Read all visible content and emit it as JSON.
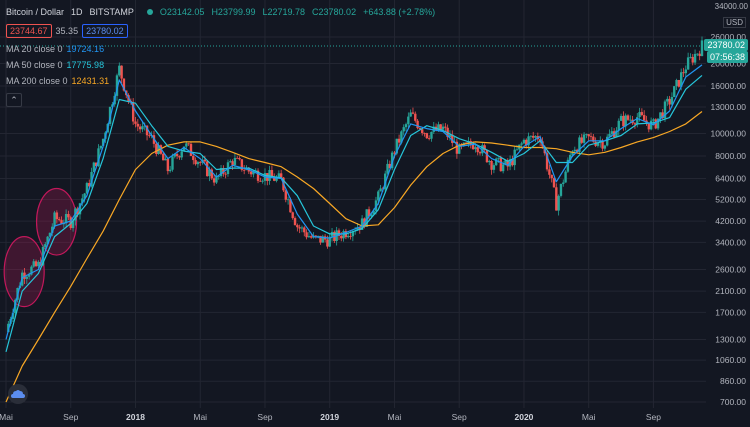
{
  "header": {
    "symbol": "Bitcoin / Dollar",
    "interval": "1D",
    "exchange": "BITSTAMP",
    "open": "O23142.05",
    "high": "H23799.99",
    "low": "L22719.78",
    "close": "C23780.02",
    "change": "+643.88 (+2.78%)",
    "bid": "23744.67",
    "spread": "35.35",
    "ask": "23780.02"
  },
  "indicators": [
    {
      "label": "MA 20 close 0",
      "value": "19724.16",
      "color": "#2196f3"
    },
    {
      "label": "MA 50 close 0",
      "value": "17775.98",
      "color": "#26c6da"
    },
    {
      "label": "MA 200 close 0",
      "value": "12431.31",
      "color": "#f9a825"
    }
  ],
  "collapse_icon": "chevron-up-icon",
  "logo_icon": "tradingview-logo-icon",
  "price_axis": {
    "currency": "USD",
    "scale": "log",
    "top_tick": "34000.00",
    "ticks": [
      "26000.00",
      "20000.00",
      "16000.00",
      "13000.00",
      "10000.00",
      "8000.00",
      "6400.00",
      "5200.00",
      "4200.00",
      "3400.00",
      "2600.00",
      "2100.00",
      "1700.00",
      "1300.00",
      "1060.00",
      "860.00",
      "700.00"
    ],
    "last_price": "23780.02",
    "countdown": "07:56:38"
  },
  "time_axis": {
    "labels": [
      "Mai",
      "Sep",
      "2018",
      "Mai",
      "Sep",
      "2019",
      "Mai",
      "Sep",
      "2020",
      "Mai",
      "Sep"
    ]
  },
  "colors": {
    "background": "#131722",
    "grid": "#232632",
    "up": "#26a69a",
    "down": "#ef5350",
    "ma20": "#2196f3",
    "ma50": "#26c6da",
    "ma200": "#f9a825",
    "highlight": "#c2185b"
  },
  "chart_data": {
    "type": "candlestick",
    "yscale": "log",
    "ylim": [
      650,
      34000
    ],
    "x": [
      "2017-05",
      "2017-06",
      "2017-07",
      "2017-08",
      "2017-09",
      "2017-10",
      "2017-11",
      "2017-12",
      "2018-01",
      "2018-02",
      "2018-03",
      "2018-04",
      "2018-05",
      "2018-06",
      "2018-07",
      "2018-08",
      "2018-09",
      "2018-10",
      "2018-11",
      "2018-12",
      "2019-01",
      "2019-02",
      "2019-03",
      "2019-04",
      "2019-05",
      "2019-06",
      "2019-07",
      "2019-08",
      "2019-09",
      "2019-10",
      "2019-11",
      "2019-12",
      "2020-01",
      "2020-02",
      "2020-03",
      "2020-04",
      "2020-05",
      "2020-06",
      "2020-07",
      "2020-08",
      "2020-09",
      "2020-10",
      "2020-11",
      "2020-12"
    ],
    "price": [
      1400,
      2500,
      2700,
      4300,
      4200,
      5800,
      9500,
      19000,
      11000,
      9500,
      7000,
      9000,
      7500,
      6300,
      7700,
      6900,
      6600,
      6300,
      4000,
      3500,
      3500,
      3800,
      4100,
      5300,
      8500,
      12000,
      10000,
      10500,
      8400,
      9200,
      7500,
      7200,
      9300,
      9800,
      5000,
      8700,
      9500,
      9200,
      11300,
      11800,
      10800,
      13800,
      19500,
      23780
    ],
    "ma20": [
      1300,
      2400,
      2600,
      4000,
      4200,
      5400,
      8800,
      17000,
      12500,
      9800,
      7800,
      8700,
      7800,
      6500,
      7300,
      7000,
      6500,
      6400,
      4500,
      3600,
      3550,
      3750,
      4000,
      5000,
      8000,
      11000,
      10500,
      10200,
      8800,
      9000,
      7800,
      7300,
      8800,
      9700,
      6200,
      8000,
      9300,
      9300,
      10500,
      11600,
      10900,
      12500,
      17500,
      19724
    ],
    "ma50": [
      1150,
      2100,
      2500,
      3600,
      4100,
      5000,
      7800,
      14000,
      13500,
      10800,
      8800,
      8400,
      8200,
      7000,
      7100,
      7100,
      6600,
      6450,
      5400,
      4000,
      3700,
      3700,
      3900,
      4700,
      7000,
      9800,
      10800,
      10300,
      9500,
      9000,
      8300,
      7600,
      8200,
      9300,
      7500,
      7500,
      8900,
      9300,
      9800,
      11000,
      11100,
      11700,
      15500,
      17776
    ],
    "ma200": [
      700,
      1000,
      1300,
      1700,
      2200,
      2900,
      3800,
      5200,
      7000,
      8200,
      8900,
      9200,
      9200,
      8800,
      8300,
      7800,
      7500,
      7200,
      6500,
      5800,
      5000,
      4300,
      4000,
      4050,
      4800,
      6000,
      7200,
      8200,
      8900,
      9200,
      9100,
      8900,
      8700,
      8700,
      8600,
      8300,
      8100,
      8300,
      8700,
      9200,
      9600,
      10200,
      11000,
      12431
    ],
    "annotations": [
      {
        "type": "ellipse",
        "x_center": "2017-06",
        "y_range": [
          1800,
          3600
        ]
      },
      {
        "type": "ellipse",
        "x_center": "2017-08",
        "y_range": [
          3000,
          5800
        ]
      }
    ]
  }
}
